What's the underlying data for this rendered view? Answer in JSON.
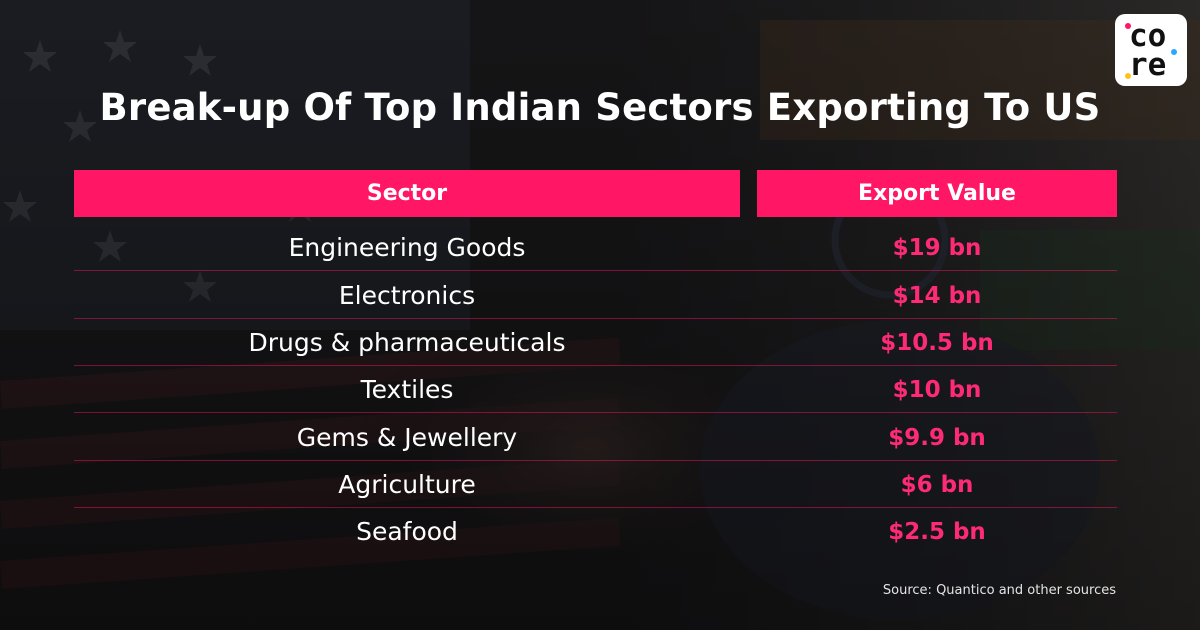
{
  "logo": {
    "line1": "co",
    "line2": "re",
    "dot_colors": [
      "#ff1766",
      "#2aa7ff",
      "#ffc21a"
    ]
  },
  "title": "Break-up Of Top Indian Sectors Exporting To US",
  "colors": {
    "accent": "#ff1766",
    "value_text": "#ff2a76",
    "header_text": "#ffffff",
    "row_text": "#ffffff"
  },
  "chart_data": {
    "type": "table",
    "title": "Break-up Of Top Indian Sectors Exporting To US",
    "columns": [
      "Sector",
      "Export Value"
    ],
    "rows": [
      {
        "sector": "Engineering Goods",
        "value_label": "$19 bn",
        "value": 19
      },
      {
        "sector": "Electronics",
        "value_label": "$14 bn",
        "value": 14
      },
      {
        "sector": "Drugs & pharmaceuticals",
        "value_label": "$10.5 bn",
        "value": 10.5
      },
      {
        "sector": "Textiles",
        "value_label": "$10 bn",
        "value": 10
      },
      {
        "sector": "Gems & Jewellery",
        "value_label": "$9.9 bn",
        "value": 9.9
      },
      {
        "sector": "Agriculture",
        "value_label": "$6 bn",
        "value": 6
      },
      {
        "sector": "Seafood",
        "value_label": "$2.5 bn",
        "value": 2.5
      }
    ],
    "unit": "bn",
    "currency": "$"
  },
  "source": "Source: Quantico and other sources"
}
